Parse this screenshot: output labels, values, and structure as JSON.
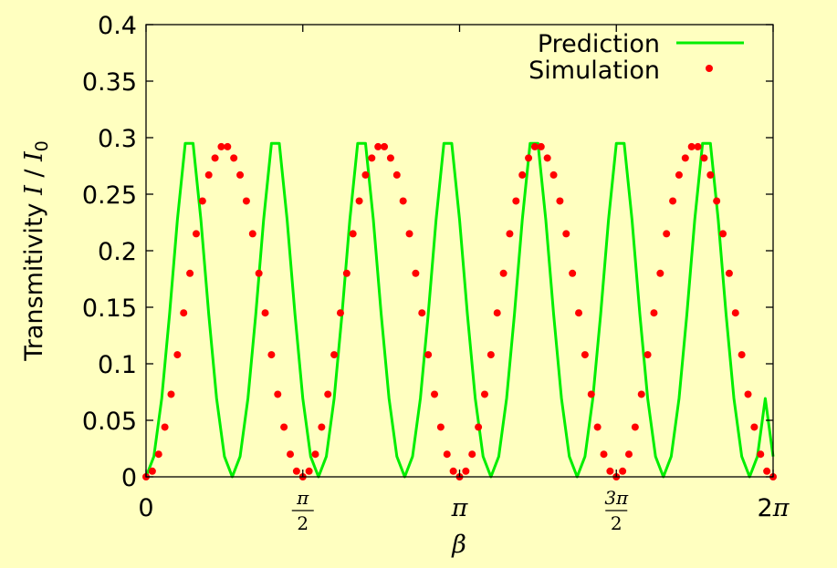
{
  "chart_data": {
    "type": "line",
    "xlabel": "β",
    "ylabel": "Transmitivity I / I0",
    "ylabel_parts": {
      "text": "Transmitivity ",
      "var": "I",
      "sep": " / ",
      "var0": "I",
      "sub": "0"
    },
    "xlim": [
      0,
      6.2832
    ],
    "ylim": [
      0,
      0.4
    ],
    "grid": false,
    "legend_position": "top-right",
    "x_ticks": [
      {
        "value": 0,
        "label": "0"
      },
      {
        "value": 1.5708,
        "label": "π/2",
        "num": "π",
        "den": "2"
      },
      {
        "value": 3.1416,
        "label": "π"
      },
      {
        "value": 4.7124,
        "label": "3π/2",
        "num": "3π",
        "den": "2"
      },
      {
        "value": 6.2832,
        "label": "2π"
      }
    ],
    "y_ticks": [
      {
        "value": 0,
        "label": "0"
      },
      {
        "value": 0.05,
        "label": "0.05"
      },
      {
        "value": 0.1,
        "label": "0.1"
      },
      {
        "value": 0.15,
        "label": "0.15"
      },
      {
        "value": 0.2,
        "label": "0.2"
      },
      {
        "value": 0.25,
        "label": "0.25"
      },
      {
        "value": 0.3,
        "label": "0.3"
      },
      {
        "value": 0.35,
        "label": "0.35"
      },
      {
        "value": 0.4,
        "label": "0.4"
      }
    ],
    "series": [
      {
        "name": "Prediction",
        "kind": "line",
        "color": "#00ee00",
        "x": [
          0,
          0.0785,
          0.1571,
          0.2356,
          0.3142,
          0.3927,
          0.4712,
          0.5498,
          0.6283,
          0.7069,
          0.7854,
          0.8639,
          0.9425,
          1.021,
          1.0996,
          1.1781,
          1.2566,
          1.3352,
          1.4137,
          1.4923,
          1.5708,
          1.6493,
          1.7279,
          1.8064,
          1.885,
          1.9635,
          2.042,
          2.1206,
          2.1991,
          2.2777,
          2.3562,
          2.4347,
          2.5133,
          2.5918,
          2.6704,
          2.7489,
          2.8274,
          2.906,
          2.9845,
          3.0631,
          3.1416,
          3.2201,
          3.2987,
          3.3772,
          3.4558,
          3.5343,
          3.6128,
          3.6914,
          3.7699,
          3.8485,
          3.927,
          4.0055,
          4.0841,
          4.1626,
          4.2412,
          4.3197,
          4.3982,
          4.4768,
          4.5553,
          4.6339,
          4.7124,
          4.7909,
          4.8695,
          4.948,
          5.0265,
          5.1051,
          5.1836,
          5.2622,
          5.3407,
          5.4192,
          5.4978,
          5.5763,
          5.6549,
          5.7334,
          5.8119,
          5.8905,
          5.969,
          6.0476,
          6.1261,
          6.2046,
          6.2832
        ],
        "y": [
          0,
          0.018,
          0.0693,
          0.1438,
          0.2273,
          0.295,
          0.295,
          0.2273,
          0.1438,
          0.0693,
          0.018,
          0,
          0.018,
          0.0693,
          0.1438,
          0.2273,
          0.295,
          0.295,
          0.2273,
          0.1438,
          0.0693,
          0.018,
          0,
          0.018,
          0.0693,
          0.1438,
          0.2273,
          0.295,
          0.295,
          0.2273,
          0.1438,
          0.0693,
          0.018,
          0,
          0.018,
          0.0693,
          0.1438,
          0.2273,
          0.295,
          0.295,
          0.2273,
          0.1438,
          0.0693,
          0.018,
          0,
          0.018,
          0.0693,
          0.1438,
          0.2273,
          0.295,
          0.295,
          0.2273,
          0.1438,
          0.0693,
          0.018,
          0,
          0.018,
          0.0693,
          0.1438,
          0.2273,
          0.295,
          0.295,
          0.2273,
          0.1438,
          0.0693,
          0.018,
          0,
          0.018,
          0.0693,
          0.1438,
          0.2273,
          0.295,
          0.295,
          0.2273,
          0.1438,
          0.0693,
          0.018,
          0,
          0.018,
          0.0693,
          0.018
        ]
      },
      {
        "name": "Simulation",
        "kind": "points",
        "color": "#ff0000",
        "x": [
          0,
          0.0628,
          0.1257,
          0.1885,
          0.2513,
          0.3142,
          0.377,
          0.4398,
          0.5027,
          0.5655,
          0.6283,
          0.6912,
          0.754,
          0.8168,
          0.8796,
          0.9425,
          1.0053,
          1.0681,
          1.131,
          1.1938,
          1.2566,
          1.3195,
          1.3823,
          1.4451,
          1.508,
          1.5708,
          1.6336,
          1.6965,
          1.7593,
          1.8221,
          1.885,
          1.9478,
          2.0106,
          2.0735,
          2.1363,
          2.1991,
          2.2619,
          2.3248,
          2.3876,
          2.4504,
          2.5133,
          2.5761,
          2.6389,
          2.7018,
          2.7646,
          2.8274,
          2.8903,
          2.9531,
          3.0159,
          3.0788,
          3.1416,
          3.2044,
          3.2673,
          3.3301,
          3.3929,
          3.4558,
          3.5186,
          3.5814,
          3.6442,
          3.7071,
          3.7699,
          3.8327,
          3.8956,
          3.9584,
          4.0212,
          4.0841,
          4.1469,
          4.2097,
          4.2726,
          4.3354,
          4.3982,
          4.4611,
          4.5239,
          4.5867,
          4.6496,
          4.7124,
          4.7752,
          4.8381,
          4.9009,
          4.9637,
          5.0265,
          5.0894,
          5.1522,
          5.215,
          5.2779,
          5.3407,
          5.4035,
          5.4664,
          5.5292,
          5.592,
          5.6549,
          5.7177,
          5.7805,
          5.8434,
          5.9062,
          5.969,
          6.0319,
          6.0947,
          6.1575,
          6.2204,
          6.2832
        ],
        "y": [
          0,
          0.005,
          0.02,
          0.044,
          0.073,
          0.108,
          0.145,
          0.18,
          0.215,
          0.244,
          0.267,
          0.282,
          0.292,
          0.292,
          0.282,
          0.267,
          0.244,
          0.215,
          0.18,
          0.145,
          0.108,
          0.073,
          0.044,
          0.02,
          0.005,
          0,
          0.005,
          0.02,
          0.044,
          0.073,
          0.108,
          0.145,
          0.18,
          0.215,
          0.244,
          0.267,
          0.282,
          0.292,
          0.292,
          0.282,
          0.267,
          0.244,
          0.215,
          0.18,
          0.145,
          0.108,
          0.073,
          0.044,
          0.02,
          0.005,
          0,
          0.005,
          0.02,
          0.044,
          0.073,
          0.108,
          0.145,
          0.18,
          0.215,
          0.244,
          0.267,
          0.282,
          0.292,
          0.292,
          0.282,
          0.267,
          0.244,
          0.215,
          0.18,
          0.145,
          0.108,
          0.073,
          0.044,
          0.02,
          0.005,
          0,
          0.005,
          0.02,
          0.044,
          0.073,
          0.108,
          0.145,
          0.18,
          0.215,
          0.244,
          0.267,
          0.282,
          0.292,
          0.292,
          0.282,
          0.267,
          0.244,
          0.215,
          0.18,
          0.145,
          0.108,
          0.073,
          0.044,
          0.02,
          0.005,
          0
        ]
      }
    ]
  },
  "colors": {
    "background": "#ffffc0",
    "frame": "#000000"
  }
}
